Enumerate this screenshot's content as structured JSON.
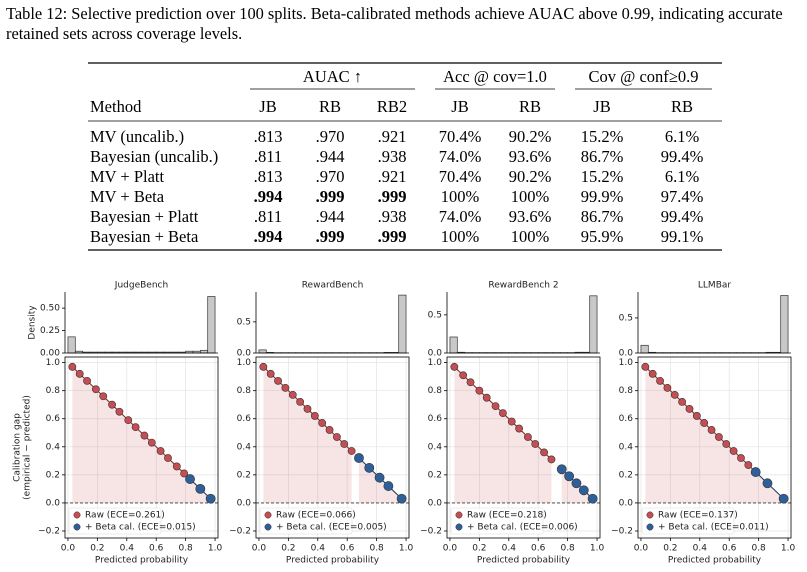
{
  "caption": "Table 12: Selective prediction over 100 splits. Beta-calibrated methods achieve AUAC above 0.99, indicating accurate retained sets across coverage levels.",
  "table": {
    "groups": [
      "AUAC ↑",
      "Acc @ cov=1.0",
      "Cov @ conf≥0.9"
    ],
    "columns": [
      "Method",
      "JB",
      "RB",
      "RB2",
      "JB",
      "RB",
      "JB",
      "RB"
    ],
    "rows": [
      {
        "cells": [
          "MV (uncalib.)",
          ".813",
          ".970",
          ".921",
          "70.4%",
          "90.2%",
          "15.2%",
          "6.1%"
        ],
        "bold": []
      },
      {
        "cells": [
          "Bayesian (uncalib.)",
          ".811",
          ".944",
          ".938",
          "74.0%",
          "93.6%",
          "86.7%",
          "99.4%"
        ],
        "bold": []
      },
      {
        "cells": [
          "MV + Platt",
          ".813",
          ".970",
          ".921",
          "70.4%",
          "90.2%",
          "15.2%",
          "6.1%"
        ],
        "bold": []
      },
      {
        "cells": [
          "MV + Beta",
          ".994",
          ".999",
          ".999",
          "100%",
          "100%",
          "99.9%",
          "97.4%"
        ],
        "bold": [
          1,
          2,
          3
        ]
      },
      {
        "cells": [
          "Bayesian + Platt",
          ".811",
          ".944",
          ".938",
          "74.0%",
          "93.6%",
          "86.7%",
          "99.4%"
        ],
        "bold": []
      },
      {
        "cells": [
          "Bayesian + Beta",
          ".994",
          ".999",
          ".999",
          "100%",
          "100%",
          "95.9%",
          "99.1%"
        ],
        "bold": [
          1,
          2,
          3
        ]
      }
    ]
  },
  "chart_data": [
    {
      "type": "calibration",
      "title": "JudgeBench",
      "hist": {
        "ylabel": "Density",
        "bins": [
          0,
          0.05,
          0.1,
          0.15,
          0.2,
          0.25,
          0.3,
          0.35,
          0.4,
          0.45,
          0.5,
          0.55,
          0.6,
          0.65,
          0.7,
          0.75,
          0.8,
          0.85,
          0.9,
          0.95,
          1.0
        ],
        "counts": [
          0.18,
          0.02,
          0.01,
          0.01,
          0.01,
          0.01,
          0.01,
          0.01,
          0.01,
          0.01,
          0.01,
          0.01,
          0.01,
          0.01,
          0.01,
          0.01,
          0.02,
          0.02,
          0.03,
          0.63
        ],
        "ylim": [
          0,
          0.68
        ],
        "yticks": [
          {
            "value": 0,
            "label": "0.00"
          },
          0.25,
          {
            "value": 0.5,
            "label": "0.50"
          }
        ]
      },
      "xlabel": "Predicted probability",
      "ylabel": [
        "Calibration gap",
        "(empirical − predicted)"
      ],
      "xlim": [
        -0.02,
        1.02
      ],
      "xticks": [
        {
          "value": 0,
          "label": "0.0"
        },
        0.2,
        0.4,
        0.6,
        0.8,
        {
          "value": 1,
          "label": "1.0"
        }
      ],
      "ylim": [
        -0.25,
        1.04
      ],
      "yticks": [
        {
          "value": -0.2,
          "label": "−0.2"
        },
        {
          "value": 0,
          "label": "0.0"
        },
        0.2,
        0.4,
        0.6,
        0.8,
        {
          "value": 1,
          "label": "1.0"
        }
      ],
      "grid": true,
      "legend": "lower left",
      "series": [
        {
          "name": "Raw (ECE=0.261)",
          "color": "#c44e52",
          "x": [
            0.03,
            0.08,
            0.13,
            0.19,
            0.24,
            0.3,
            0.35,
            0.41,
            0.46,
            0.52,
            0.57,
            0.63,
            0.68,
            0.74,
            0.79,
            0.83
          ],
          "values": [
            0.97,
            0.92,
            0.87,
            0.81,
            0.76,
            0.7,
            0.65,
            0.59,
            0.54,
            0.48,
            0.43,
            0.37,
            0.32,
            0.26,
            0.21,
            0.17
          ]
        },
        {
          "name": "+ Beta cal. (ECE=0.015)",
          "color": "#2f5f98",
          "x": [
            0.83,
            0.9,
            0.97
          ],
          "values": [
            0.17,
            0.1,
            0.03
          ]
        }
      ]
    },
    {
      "type": "calibration",
      "title": "RewardBench",
      "hist": {
        "bins": [
          0,
          0.05,
          0.1,
          0.15,
          0.2,
          0.25,
          0.3,
          0.35,
          0.4,
          0.45,
          0.5,
          0.55,
          0.6,
          0.65,
          0.7,
          0.75,
          0.8,
          0.85,
          0.9,
          0.95,
          1.0
        ],
        "counts": [
          0.05,
          0.01,
          0.005,
          0.005,
          0.005,
          0.005,
          0.005,
          0.005,
          0.005,
          0.005,
          0.005,
          0.005,
          0.005,
          0.005,
          0.005,
          0.005,
          0.005,
          0.01,
          0.01,
          0.93
        ],
        "ylim": [
          0,
          0.98
        ],
        "yticks": [
          {
            "value": 0,
            "label": "0.0"
          },
          0.5
        ]
      },
      "xlabel": "Predicted probability",
      "xlim": [
        -0.02,
        1.02
      ],
      "xticks": [
        {
          "value": 0,
          "label": "0.0"
        },
        0.2,
        0.4,
        0.6,
        0.8,
        {
          "value": 1,
          "label": "1.0"
        }
      ],
      "ylim": [
        -0.25,
        1.04
      ],
      "yticks": [
        {
          "value": -0.2,
          "label": "−0.2"
        },
        {
          "value": 0,
          "label": "0.0"
        },
        0.2,
        0.4,
        0.6,
        0.8,
        {
          "value": 1,
          "label": "1.0"
        }
      ],
      "grid": true,
      "legend": "lower left",
      "series": [
        {
          "name": "Raw (ECE=0.066)",
          "color": "#c44e52",
          "x": [
            0.03,
            0.08,
            0.13,
            0.18,
            0.23,
            0.28,
            0.33,
            0.38,
            0.43,
            0.48,
            0.53,
            0.58,
            0.63
          ],
          "values": [
            0.97,
            0.92,
            0.87,
            0.82,
            0.77,
            0.72,
            0.67,
            0.62,
            0.57,
            0.52,
            0.47,
            0.42,
            0.37
          ]
        },
        {
          "name": "+ Beta cal. (ECE=0.005)",
          "color": "#2f5f98",
          "x": [
            0.68,
            0.75,
            0.82,
            0.88,
            0.97
          ],
          "values": [
            0.32,
            0.25,
            0.18,
            0.12,
            0.03
          ]
        }
      ]
    },
    {
      "type": "calibration",
      "title": "RewardBench 2",
      "hist": {
        "bins": [
          0,
          0.05,
          0.1,
          0.15,
          0.2,
          0.25,
          0.3,
          0.35,
          0.4,
          0.45,
          0.5,
          0.55,
          0.6,
          0.65,
          0.7,
          0.75,
          0.8,
          0.85,
          0.9,
          0.95,
          1.0
        ],
        "counts": [
          0.21,
          0.01,
          0.005,
          0.005,
          0.005,
          0.005,
          0.005,
          0.005,
          0.005,
          0.005,
          0.005,
          0.005,
          0.005,
          0.005,
          0.005,
          0.005,
          0.005,
          0.01,
          0.01,
          0.75
        ],
        "ylim": [
          0,
          0.8
        ],
        "yticks": [
          {
            "value": 0,
            "label": "0.0"
          },
          0.5
        ]
      },
      "xlabel": "Predicted probability",
      "xlim": [
        -0.02,
        1.02
      ],
      "xticks": [
        {
          "value": 0,
          "label": "0.0"
        },
        0.2,
        0.4,
        0.6,
        0.8,
        {
          "value": 1,
          "label": "1.0"
        }
      ],
      "ylim": [
        -0.25,
        1.04
      ],
      "yticks": [
        {
          "value": -0.2,
          "label": "−0.2"
        },
        {
          "value": 0,
          "label": "0.0"
        },
        0.2,
        0.4,
        0.6,
        0.8,
        {
          "value": 1,
          "label": "1.0"
        }
      ],
      "grid": true,
      "legend": "lower left",
      "series": [
        {
          "name": "Raw (ECE=0.218)",
          "color": "#c44e52",
          "x": [
            0.03,
            0.09,
            0.14,
            0.2,
            0.25,
            0.31,
            0.36,
            0.42,
            0.47,
            0.53,
            0.58,
            0.64,
            0.69
          ],
          "values": [
            0.97,
            0.91,
            0.86,
            0.8,
            0.75,
            0.69,
            0.64,
            0.58,
            0.53,
            0.47,
            0.42,
            0.36,
            0.31
          ]
        },
        {
          "name": "+ Beta cal. (ECE=0.006)",
          "color": "#2f5f98",
          "x": [
            0.76,
            0.81,
            0.86,
            0.91,
            0.97
          ],
          "values": [
            0.24,
            0.19,
            0.14,
            0.09,
            0.03
          ]
        }
      ]
    },
    {
      "type": "calibration",
      "title": "LLMBar",
      "hist": {
        "bins": [
          0,
          0.05,
          0.1,
          0.15,
          0.2,
          0.25,
          0.3,
          0.35,
          0.4,
          0.45,
          0.5,
          0.55,
          0.6,
          0.65,
          0.7,
          0.75,
          0.8,
          0.85,
          0.9,
          0.95,
          1.0
        ],
        "counts": [
          0.11,
          0.01,
          0.005,
          0.005,
          0.005,
          0.005,
          0.005,
          0.005,
          0.005,
          0.005,
          0.005,
          0.005,
          0.005,
          0.005,
          0.005,
          0.005,
          0.005,
          0.01,
          0.01,
          0.82
        ],
        "ylim": [
          0,
          0.87
        ],
        "yticks": [
          {
            "value": 0,
            "label": "0.0"
          },
          0.5
        ]
      },
      "xlabel": "Predicted probability",
      "xlim": [
        -0.02,
        1.02
      ],
      "xticks": [
        {
          "value": 0,
          "label": "0.0"
        },
        0.2,
        0.4,
        0.6,
        0.8,
        {
          "value": 1,
          "label": "1.0"
        }
      ],
      "ylim": [
        -0.25,
        1.04
      ],
      "yticks": [
        {
          "value": -0.2,
          "label": "−0.2"
        },
        {
          "value": 0,
          "label": "0.0"
        },
        0.2,
        0.4,
        0.6,
        0.8,
        {
          "value": 1,
          "label": "1.0"
        }
      ],
      "grid": true,
      "legend": "lower left",
      "series": [
        {
          "name": "Raw (ECE=0.137)",
          "color": "#c44e52",
          "x": [
            0.03,
            0.08,
            0.13,
            0.18,
            0.23,
            0.28,
            0.33,
            0.38,
            0.43,
            0.48,
            0.53,
            0.58,
            0.63,
            0.68,
            0.73,
            0.78
          ],
          "values": [
            0.97,
            0.92,
            0.87,
            0.82,
            0.77,
            0.72,
            0.67,
            0.62,
            0.57,
            0.52,
            0.47,
            0.42,
            0.37,
            0.32,
            0.27,
            0.22
          ]
        },
        {
          "name": "+ Beta cal. (ECE=0.011)",
          "color": "#2f5f98",
          "x": [
            0.78,
            0.86,
            0.97
          ],
          "values": [
            0.22,
            0.14,
            0.03
          ]
        }
      ]
    }
  ]
}
